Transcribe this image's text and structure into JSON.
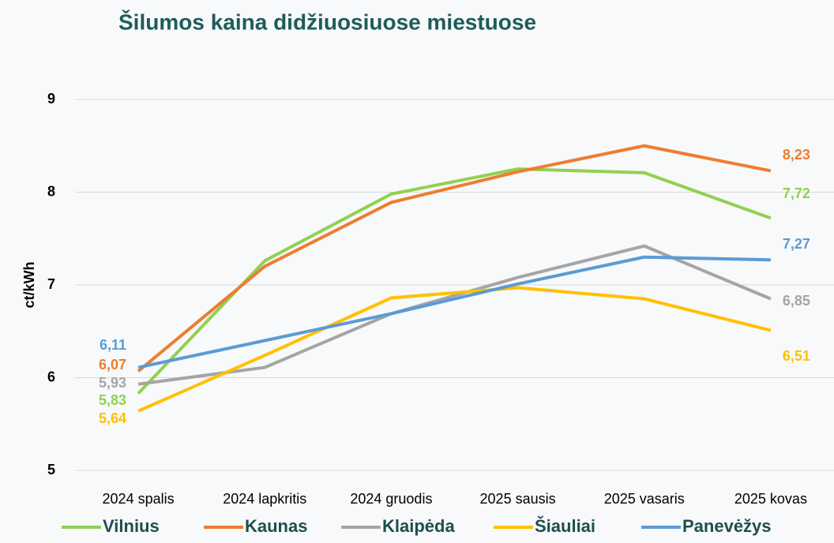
{
  "chart_data": {
    "type": "line",
    "title": "Šilumos kaina didžiuosiuose miestuose",
    "y_label": "ct/kWh",
    "categories": [
      "2024 spalis",
      "2024 lapkritis",
      "2024 gruodis",
      "2025 sausis",
      "2025 vasaris",
      "2025 kovas"
    ],
    "series": [
      {
        "name": "Vilnius",
        "color": "#92d050",
        "values": [
          5.83,
          7.26,
          7.98,
          8.25,
          8.21,
          7.72
        ],
        "value_labels": [
          "5,83",
          null,
          null,
          null,
          null,
          "7,72"
        ]
      },
      {
        "name": "Kaunas",
        "color": "#ed7d31",
        "values": [
          6.07,
          7.2,
          7.89,
          8.22,
          8.5,
          8.23
        ],
        "value_labels": [
          "6,07",
          null,
          null,
          null,
          null,
          "8,23"
        ]
      },
      {
        "name": "Klaipėda",
        "color": "#a5a5a5",
        "values": [
          5.93,
          6.11,
          6.69,
          7.08,
          7.42,
          6.85
        ],
        "value_labels": [
          "5,93",
          null,
          null,
          null,
          null,
          "6,85"
        ]
      },
      {
        "name": "Šiauliai",
        "color": "#ffc000",
        "values": [
          5.64,
          6.24,
          6.86,
          6.97,
          6.85,
          6.51
        ],
        "value_labels": [
          "5,64",
          null,
          null,
          null,
          null,
          "6,51"
        ]
      },
      {
        "name": "Panevėžys",
        "color": "#5b9bd5",
        "values": [
          6.11,
          6.4,
          6.69,
          7.01,
          7.3,
          7.27
        ],
        "value_labels": [
          "6,11",
          null,
          null,
          null,
          null,
          "7,27"
        ]
      }
    ],
    "ylim": [
      5,
      9
    ],
    "yticks": [
      5,
      6,
      7,
      8,
      9
    ],
    "grid": true,
    "legend": "bottom"
  }
}
